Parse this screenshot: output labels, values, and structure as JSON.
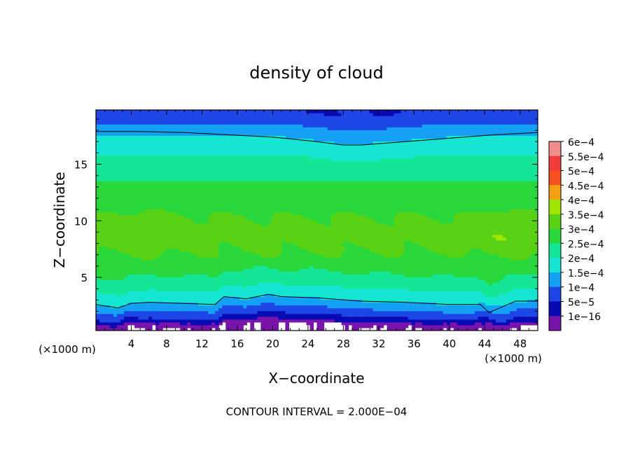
{
  "chart_data": {
    "type": "heatmap",
    "title": "density of cloud",
    "xlabel": "X−coordinate",
    "ylabel": "Z−coordinate",
    "x_unit_left": "(×1000 m)",
    "x_unit_right": "(×1000 m)",
    "footer": "CONTOUR INTERVAL = 2.000E−04",
    "xlim": [
      0,
      50
    ],
    "ylim": [
      0.3,
      19.8
    ],
    "x_ticks": [
      4,
      8,
      12,
      16,
      20,
      24,
      28,
      32,
      36,
      40,
      44,
      48
    ],
    "x_tick_labels": [
      "4",
      "8",
      "12",
      "16",
      "20",
      "24",
      "28",
      "32",
      "36",
      "40",
      "44",
      "48"
    ],
    "y_ticks": [
      5,
      10,
      15
    ],
    "y_tick_labels": [
      "5",
      "10",
      "15"
    ],
    "colorbar": {
      "levels": [
        {
          "label": "6e−4",
          "color": "#f08c8c"
        },
        {
          "label": "5.5e−4",
          "color": "#f03c3c"
        },
        {
          "label": "5e−4",
          "color": "#f5501e"
        },
        {
          "label": "4.5e−4",
          "color": "#f5a014"
        },
        {
          "label": "4e−4",
          "color": "#a0e600"
        },
        {
          "label": "3.5e−4",
          "color": "#5ad214"
        },
        {
          "label": "3e−4",
          "color": "#28d73c"
        },
        {
          "label": "2.5e−4",
          "color": "#14e696"
        },
        {
          "label": "2e−4",
          "color": "#14e6d2"
        },
        {
          "label": "1.5e−4",
          "color": "#14a0f5"
        },
        {
          "label": "1e−4",
          "color": "#1e46e6"
        },
        {
          "label": "5e−5",
          "color": "#0a0ab4"
        },
        {
          "label": "1e−16",
          "color": "#7814aa"
        }
      ]
    },
    "contour_2e-4_upper": {
      "x": [
        0,
        5,
        10,
        15,
        20,
        25,
        28,
        30,
        35,
        40,
        45,
        50
      ],
      "z": [
        17.9,
        17.9,
        17.8,
        17.6,
        17.4,
        17.0,
        16.7,
        16.7,
        17.0,
        17.3,
        17.6,
        17.8
      ]
    },
    "contour_2e-4_lower": {
      "x": [
        0,
        2.5,
        4,
        6,
        10,
        13.5,
        14.5,
        17,
        19.5,
        21,
        25,
        30,
        35,
        40,
        43.5,
        44.5,
        46,
        47.5,
        50
      ],
      "z": [
        2.6,
        2.3,
        2.7,
        2.8,
        2.7,
        2.6,
        3.3,
        3.1,
        3.5,
        3.3,
        3.2,
        2.9,
        2.8,
        2.6,
        2.6,
        1.9,
        2.4,
        2.9,
        2.9
      ]
    },
    "profile_z": [
      0.3,
      0.6,
      0.9,
      1.2,
      1.6,
      2.0,
      2.4,
      2.8,
      3.2,
      3.8,
      4.5,
      5.5,
      6.5,
      7.5,
      8.5,
      9.5,
      10.5,
      11.5,
      12.5,
      13.5,
      14.5,
      15.5,
      16.5,
      17.3,
      18.0,
      18.6,
      19.2,
      19.8
    ],
    "profile_density": [
      1e-05,
      3e-05,
      6e-05,
      9e-05,
      0.00012,
      0.00015,
      0.00018,
      0.000205,
      0.000225,
      0.00025,
      0.00028,
      0.00031,
      0.000335,
      0.000355,
      0.000365,
      0.00036,
      0.00035,
      0.000335,
      0.000315,
      0.0003,
      0.00028,
      0.00026,
      0.000235,
      0.000205,
      0.00018,
      0.00015,
      0.00012,
      0.0001
    ]
  }
}
